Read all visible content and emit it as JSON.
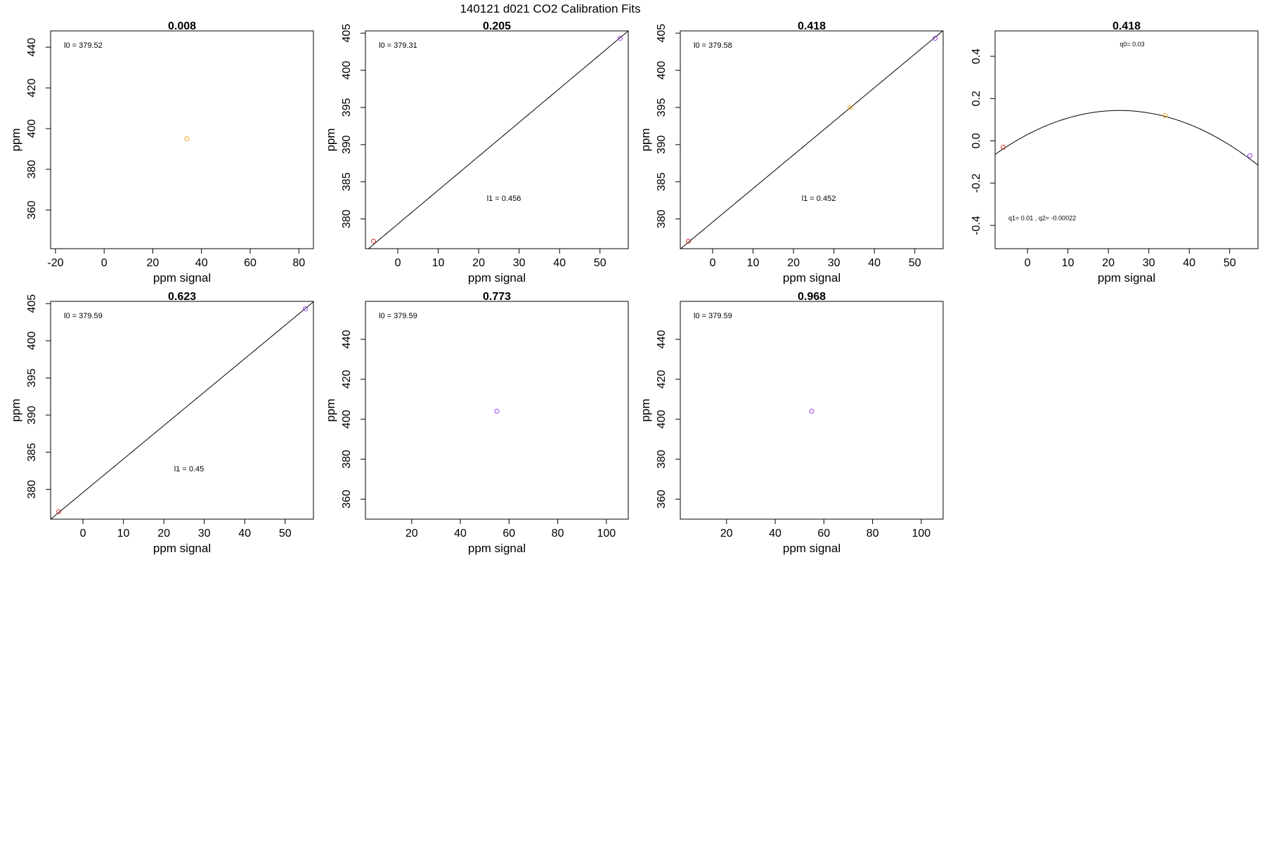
{
  "page_title": "140121   d021   CO2 Calibration Fits",
  "colors": {
    "red": "#d42a2a",
    "orange": "#f5a623",
    "violet": "#a040f0",
    "line": "#000000"
  },
  "chart_data": [
    {
      "type": "scatter",
      "title": "0.008",
      "xlabel": "ppm signal",
      "ylabel": "ppm",
      "xlim": [
        -22,
        86
      ],
      "ylim": [
        341,
        448
      ],
      "xticks": [
        "-20",
        "0",
        "20",
        "40",
        "60",
        "80"
      ],
      "yticks": [
        "360",
        "380",
        "400",
        "420",
        "440"
      ],
      "points": [
        {
          "x": 34,
          "y": 395,
          "color": "orange"
        }
      ],
      "fit": null,
      "annotations": [
        {
          "text": "l0 =  379.52",
          "anchor": "top-left"
        }
      ]
    },
    {
      "type": "scatter",
      "title": "0.205",
      "xlabel": "ppm signal",
      "ylabel": "ppm",
      "xlim": [
        -8,
        57
      ],
      "ylim": [
        376,
        405.3
      ],
      "xticks": [
        "0",
        "10",
        "20",
        "30",
        "40",
        "50"
      ],
      "yticks": [
        "380",
        "385",
        "390",
        "395",
        "400",
        "405"
      ],
      "points": [
        {
          "x": -6,
          "y": 377,
          "color": "red"
        },
        {
          "x": 55,
          "y": 404.3,
          "color": "violet"
        }
      ],
      "fit": {
        "kind": "linear",
        "c0": 379.31,
        "c1": 0.456
      },
      "annotations": [
        {
          "text": "l0 =  379.31",
          "anchor": "top-left"
        },
        {
          "text": "l1 =  0.456",
          "anchor": "center-low"
        }
      ]
    },
    {
      "type": "scatter",
      "title": "0.418",
      "xlabel": "ppm signal",
      "ylabel": "ppm",
      "xlim": [
        -8,
        57
      ],
      "ylim": [
        376,
        405.3
      ],
      "xticks": [
        "0",
        "10",
        "20",
        "30",
        "40",
        "50"
      ],
      "yticks": [
        "380",
        "385",
        "390",
        "395",
        "400",
        "405"
      ],
      "points": [
        {
          "x": -6,
          "y": 377,
          "color": "red"
        },
        {
          "x": 34,
          "y": 395,
          "color": "orange"
        },
        {
          "x": 55,
          "y": 404.3,
          "color": "violet"
        }
      ],
      "fit": {
        "kind": "linear",
        "c0": 379.58,
        "c1": 0.452
      },
      "annotations": [
        {
          "text": "l0 =  379.58",
          "anchor": "top-left"
        },
        {
          "text": "l1 =  0.452",
          "anchor": "center-low"
        }
      ]
    },
    {
      "type": "scatter",
      "title": "0.418",
      "xlabel": "ppm signal",
      "ylabel": "",
      "xlim": [
        -8,
        57
      ],
      "ylim": [
        -0.51,
        0.52
      ],
      "xticks": [
        "0",
        "10",
        "20",
        "30",
        "40",
        "50"
      ],
      "yticks": [
        "-0.4",
        "-0.2",
        "0.0",
        "0.2",
        "0.4"
      ],
      "points": [
        {
          "x": -6,
          "y": -0.03,
          "color": "red"
        },
        {
          "x": 34,
          "y": 0.12,
          "color": "orange"
        },
        {
          "x": 55,
          "y": -0.07,
          "color": "violet"
        }
      ],
      "fit": {
        "kind": "quadratic",
        "c0": 0.03,
        "c1": 0.01,
        "c2": -0.00022
      },
      "annotations": [
        {
          "text": "q0= 0.03",
          "anchor": "top-center",
          "small": true
        },
        {
          "text": "q1= 0.01 , q2= -0.00022",
          "anchor": "bottom-left",
          "small": true
        }
      ]
    },
    {
      "type": "scatter",
      "title": "0.623",
      "xlabel": "ppm signal",
      "ylabel": "ppm",
      "xlim": [
        -8,
        57
      ],
      "ylim": [
        376,
        405.3
      ],
      "xticks": [
        "0",
        "10",
        "20",
        "30",
        "40",
        "50"
      ],
      "yticks": [
        "380",
        "385",
        "390",
        "395",
        "400",
        "405"
      ],
      "points": [
        {
          "x": -6,
          "y": 377,
          "color": "red"
        },
        {
          "x": 55,
          "y": 404.3,
          "color": "violet"
        }
      ],
      "fit": {
        "kind": "linear",
        "c0": 379.59,
        "c1": 0.45
      },
      "annotations": [
        {
          "text": "l0 =  379.59",
          "anchor": "top-left"
        },
        {
          "text": "l1 =  0.45",
          "anchor": "center-low"
        }
      ]
    },
    {
      "type": "scatter",
      "title": "0.773",
      "xlabel": "ppm signal",
      "ylabel": "ppm",
      "xlim": [
        1,
        109
      ],
      "ylim": [
        350,
        459
      ],
      "xticks": [
        "20",
        "40",
        "60",
        "80",
        "100"
      ],
      "yticks": [
        "360",
        "380",
        "400",
        "420",
        "440"
      ],
      "points": [
        {
          "x": 55,
          "y": 404,
          "color": "violet"
        }
      ],
      "fit": null,
      "annotations": [
        {
          "text": "l0 =  379.59",
          "anchor": "top-left"
        }
      ]
    },
    {
      "type": "scatter",
      "title": "0.968",
      "xlabel": "ppm signal",
      "ylabel": "ppm",
      "xlim": [
        1,
        109
      ],
      "ylim": [
        350,
        459
      ],
      "xticks": [
        "20",
        "40",
        "60",
        "80",
        "100"
      ],
      "yticks": [
        "360",
        "380",
        "400",
        "420",
        "440"
      ],
      "points": [
        {
          "x": 55,
          "y": 404,
          "color": "violet"
        }
      ],
      "fit": null,
      "annotations": [
        {
          "text": "l0 =  379.59",
          "anchor": "top-left"
        }
      ]
    }
  ]
}
